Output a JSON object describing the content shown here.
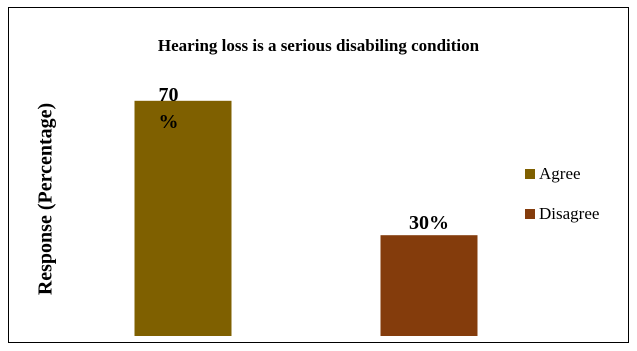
{
  "chart_data": {
    "type": "bar",
    "title": "Hearing loss is a serious disabiling condition",
    "ylabel": "Response (Percentage)",
    "xlabel": "",
    "categories": [
      "Agree",
      "Disagree"
    ],
    "values": [
      70,
      30
    ],
    "data_labels": [
      "70\n%",
      "30%"
    ],
    "colors": [
      "#7F6000",
      "#843C0C"
    ],
    "legend": [
      "Agree",
      "Disagree"
    ],
    "legend_position": "right",
    "ylim": [
      0,
      75
    ],
    "grid": false
  }
}
